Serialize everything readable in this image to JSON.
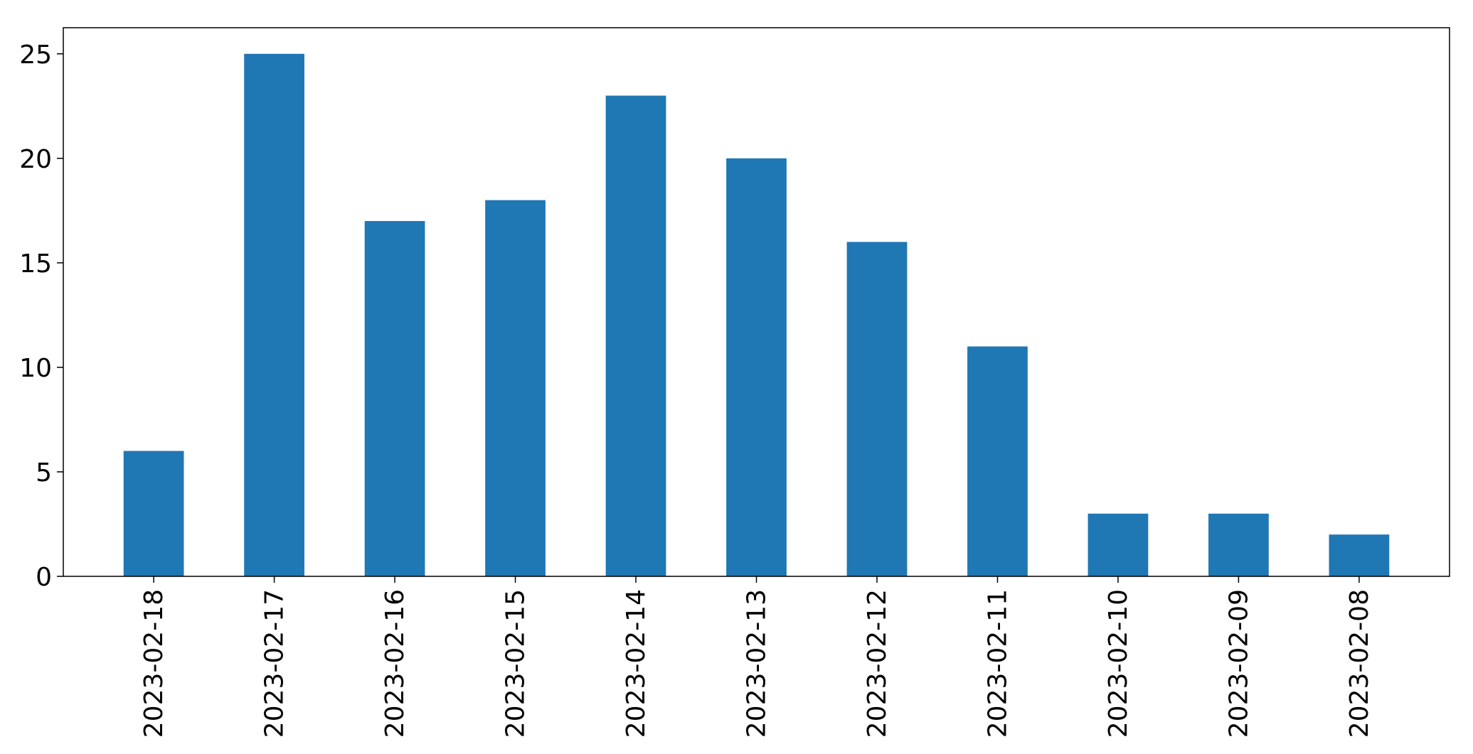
{
  "chart_data": {
    "type": "bar",
    "title": "",
    "xlabel": "",
    "ylabel": "",
    "categories": [
      "2023-02-18",
      "2023-02-17",
      "2023-02-16",
      "2023-02-15",
      "2023-02-14",
      "2023-02-13",
      "2023-02-12",
      "2023-02-11",
      "2023-02-10",
      "2023-02-09",
      "2023-02-08"
    ],
    "values": [
      6,
      25,
      17,
      18,
      23,
      20,
      16,
      11,
      3,
      3,
      2
    ],
    "ylim": [
      0,
      26.25
    ],
    "yticks": [
      0,
      5,
      10,
      15,
      20,
      25
    ],
    "grid": false,
    "legend": "none",
    "colors": {
      "bar": "#1f77b4",
      "axis": "#000000",
      "background": "#ffffff"
    }
  }
}
